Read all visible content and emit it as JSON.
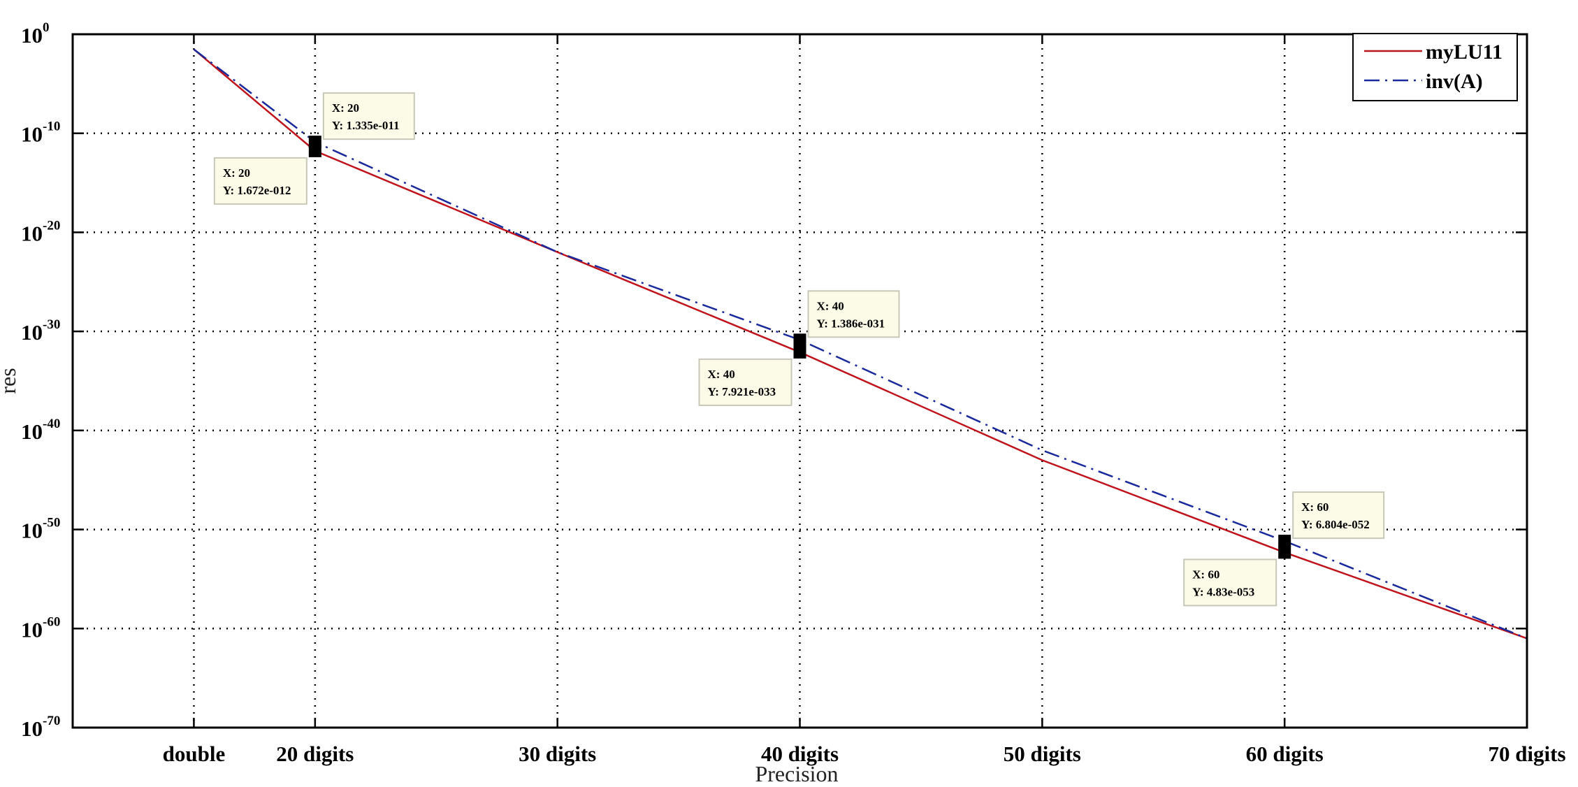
{
  "chart_data": {
    "type": "line",
    "title": "",
    "xlabel": "Precision",
    "ylabel": "res",
    "yscale": "log",
    "xlim": [
      10,
      70
    ],
    "ylim_exponents": [
      -70,
      0
    ],
    "grid": true,
    "legend_position": "top-right",
    "x_ticks": [
      {
        "value": 15,
        "label": "double"
      },
      {
        "value": 20,
        "label": "20 digits"
      },
      {
        "value": 30,
        "label": "30 digits"
      },
      {
        "value": 40,
        "label": "40 digits"
      },
      {
        "value": 50,
        "label": "50 digits"
      },
      {
        "value": 60,
        "label": "60 digits"
      },
      {
        "value": 70,
        "label": "70 digits"
      }
    ],
    "y_ticks": [
      0,
      -10,
      -20,
      -30,
      -40,
      -50,
      -60,
      -70
    ],
    "y_tick_base": "10",
    "x": [
      15,
      20,
      30,
      40,
      50,
      60,
      70
    ],
    "series": [
      {
        "name": "myLU11",
        "color": "#c0141c",
        "style": "solid",
        "values": [
          0.03,
          1.672e-12,
          1e-22,
          7.921e-33,
          1e-43,
          4.83e-53,
          1e-61
        ]
      },
      {
        "name": "inv(A)",
        "color": "#1a2a9c",
        "style": "dashdot",
        "values": [
          0.03,
          1.335e-11,
          1e-22,
          1.386e-31,
          1e-42,
          6.804e-52,
          1e-61
        ]
      }
    ],
    "datatips": [
      {
        "series": 1,
        "x_text": "X: 20",
        "y_text": "Y: 1.335e-011",
        "x": 20,
        "y": 1.335e-11,
        "side": "upper-right"
      },
      {
        "series": 0,
        "x_text": "X: 20",
        "y_text": "Y: 1.672e-012",
        "x": 20,
        "y": 1.672e-12,
        "side": "lower-left"
      },
      {
        "series": 1,
        "x_text": "X: 40",
        "y_text": "Y: 1.386e-031",
        "x": 40,
        "y": 1.386e-31,
        "side": "upper-right"
      },
      {
        "series": 0,
        "x_text": "X: 40",
        "y_text": "Y: 7.921e-033",
        "x": 40,
        "y": 7.921e-33,
        "side": "lower-left"
      },
      {
        "series": 1,
        "x_text": "X: 60",
        "y_text": "Y: 6.804e-052",
        "x": 60,
        "y": 6.804e-52,
        "side": "upper-right"
      },
      {
        "series": 0,
        "x_text": "X: 60",
        "y_text": "Y: 4.83e-053",
        "x": 60,
        "y": 4.83e-53,
        "side": "lower-left"
      }
    ]
  }
}
